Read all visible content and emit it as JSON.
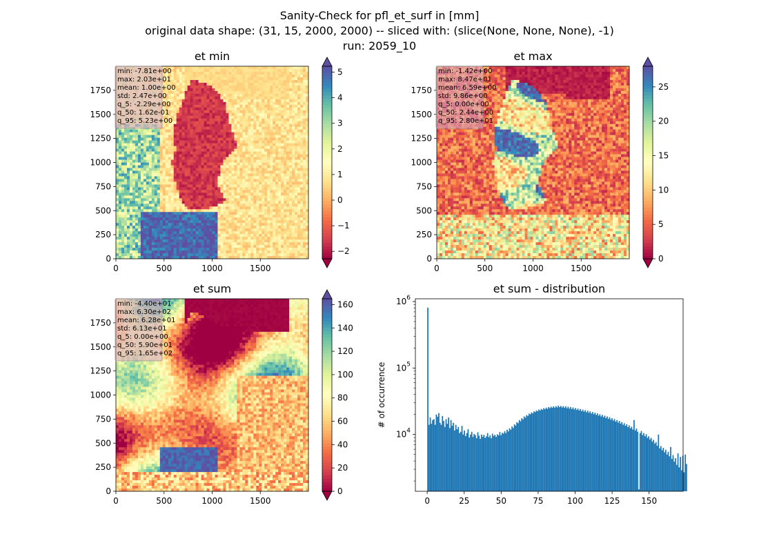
{
  "figure": {
    "title_lines": [
      "Sanity-Check for pfl_et_surf in [mm]",
      "original data shape: (31, 15, 2000, 2000) -- sliced with: (slice(None, None, None), -1)",
      "run: 2059_10"
    ]
  },
  "colors": {
    "hist_bar": "#1f77b4",
    "stats_box_bg": "#d8a6bc",
    "spectral_stops": [
      "#9e0142",
      "#d53e4f",
      "#f46d43",
      "#fdae61",
      "#fee08b",
      "#ffffbf",
      "#e6f598",
      "#abdda4",
      "#66c2a5",
      "#3288bd",
      "#5e4fa2"
    ]
  },
  "chart_data": [
    {
      "id": "et_min",
      "type": "heatmap",
      "title": "et min",
      "colormap": "Spectral",
      "x_ticks": [
        "0",
        "500",
        "1000",
        "1500"
      ],
      "y_ticks": [
        "0",
        "250",
        "500",
        "750",
        "1000",
        "1250",
        "1500",
        "1750"
      ],
      "xlim": [
        0,
        2000
      ],
      "ylim": [
        0,
        2000
      ],
      "colorbar": {
        "range": [
          -2.29,
          5.23
        ],
        "ticks": [
          -2,
          -1,
          0,
          1,
          2,
          3,
          4,
          5
        ],
        "tick_labels": [
          "−2",
          "−1",
          "0",
          "1",
          "2",
          "3",
          "4",
          "5"
        ],
        "extend": "both"
      },
      "stats": [
        "min: -7.81e+00",
        "max: 2.03e+01",
        "mean: 1.00e+00",
        "std: 2.47e+00",
        "q_5: -2.29e+00",
        "q_50: 1.62e-01",
        "q_95: 5.23e+00"
      ]
    },
    {
      "id": "et_max",
      "type": "heatmap",
      "title": "et max",
      "colormap": "Spectral",
      "x_ticks": [
        "0",
        "500",
        "1000",
        "1500"
      ],
      "y_ticks": [
        "0",
        "250",
        "500",
        "750",
        "1000",
        "1250",
        "1500",
        "1750"
      ],
      "xlim": [
        0,
        2000
      ],
      "ylim": [
        0,
        2000
      ],
      "colorbar": {
        "range": [
          0,
          28.0
        ],
        "ticks": [
          0,
          5,
          10,
          15,
          20,
          25
        ],
        "tick_labels": [
          "0",
          "5",
          "10",
          "15",
          "20",
          "25"
        ],
        "extend": "both"
      },
      "stats": [
        "min: -1.42e+00",
        "max: 8.47e+01",
        "mean: 6.59e+00",
        "std: 9.86e+00",
        "q_5: 0.00e+00",
        "q_50: 2.44e+00",
        "q_95: 2.80e+01"
      ]
    },
    {
      "id": "et_sum",
      "type": "heatmap",
      "title": "et sum",
      "colormap": "Spectral",
      "x_ticks": [
        "0",
        "500",
        "1000",
        "1500"
      ],
      "y_ticks": [
        "0",
        "250",
        "500",
        "750",
        "1000",
        "1250",
        "1500",
        "1750"
      ],
      "xlim": [
        0,
        2000
      ],
      "ylim": [
        0,
        2000
      ],
      "colorbar": {
        "range": [
          0,
          165
        ],
        "ticks": [
          0,
          20,
          40,
          60,
          80,
          100,
          120,
          140,
          160
        ],
        "tick_labels": [
          "0",
          "20",
          "40",
          "60",
          "80",
          "100",
          "120",
          "140",
          "160"
        ],
        "extend": "both"
      },
      "stats": [
        "min: -4.40e+01",
        "max: 6.30e+02",
        "mean: 6.28e+01",
        "std: 6.13e+01",
        "q_5: 0.00e+00",
        "q_50: 5.90e+01",
        "q_95: 1.65e+02"
      ]
    },
    {
      "id": "et_sum_dist",
      "type": "bar",
      "subtype": "histogram",
      "title": "et sum - distribution",
      "ylabel": "# of occurrence",
      "yscale": "log",
      "xlim": [
        -8,
        173
      ],
      "ylim": [
        1400,
        1100000
      ],
      "x_ticks": [
        0,
        25,
        50,
        75,
        100,
        125,
        150
      ],
      "y_ticks": [
        {
          "value": 10000,
          "base": "10",
          "exp": "4"
        },
        {
          "value": 100000,
          "base": "10",
          "exp": "5"
        },
        {
          "value": 1000000,
          "base": "10",
          "exp": "6"
        }
      ],
      "bin_width": 0.825,
      "bin_start": 0,
      "counts": [
        810000,
        14000,
        18000,
        14500,
        16500,
        17000,
        14000,
        20000,
        18500,
        21000,
        15000,
        14000,
        19000,
        16000,
        13000,
        17000,
        14500,
        18000,
        12500,
        16500,
        13500,
        15000,
        11500,
        14000,
        12000,
        13000,
        10500,
        11000,
        13500,
        10000,
        11500,
        9500,
        10500,
        12000,
        9000,
        10000,
        11000,
        9200,
        10200,
        9800,
        8800,
        10800,
        9600,
        8600,
        10000,
        9200,
        9900,
        8900,
        9400,
        10500,
        9100,
        9700,
        8800,
        10300,
        9500,
        9900,
        9200,
        10100,
        9700,
        10900,
        9800,
        10600,
        10300,
        11200,
        10500,
        11800,
        11100,
        12400,
        11800,
        13200,
        12500,
        14200,
        13600,
        15300,
        14800,
        16500,
        15800,
        17600,
        16900,
        18700,
        17900,
        19600,
        19000,
        20600,
        20100,
        21500,
        20800,
        22300,
        21700,
        23000,
        22400,
        23800,
        22900,
        24300,
        23500,
        24900,
        24000,
        25400,
        24300,
        25800,
        24900,
        26200,
        25200,
        26500,
        25300,
        26700,
        25600,
        27200,
        25800,
        26900,
        25500,
        26700,
        25200,
        26500,
        24800,
        26200,
        24500,
        25900,
        24200,
        25500,
        23800,
        25000,
        23400,
        24600,
        23000,
        24200,
        22500,
        23700,
        22100,
        23200,
        21600,
        22800,
        21200,
        22300,
        20700,
        21800,
        20200,
        21300,
        19700,
        20800,
        19200,
        20200,
        18700,
        19700,
        18200,
        19200,
        17700,
        18700,
        17200,
        18200,
        16700,
        17600,
        16200,
        17100,
        15600,
        16500,
        15100,
        16000,
        14600,
        15400,
        14000,
        14800,
        13500,
        14300,
        12900,
        13700,
        12400,
        13100,
        11900,
        16500,
        11500,
        12300,
        11000,
        1500,
        10500,
        11300,
        9800,
        10500,
        9400,
        10100,
        8900,
        9400,
        8400,
        8900,
        7800,
        8300,
        7300,
        7700,
        6800,
        10000,
        6200,
        6700,
        5800,
        6300,
        5400,
        5900,
        5000,
        5500,
        4700,
        6500,
        4300,
        4900,
        3900,
        4400,
        3500,
        5200,
        3200,
        4600,
        2900,
        4800,
        2700,
        5000,
        3600
      ]
    }
  ]
}
